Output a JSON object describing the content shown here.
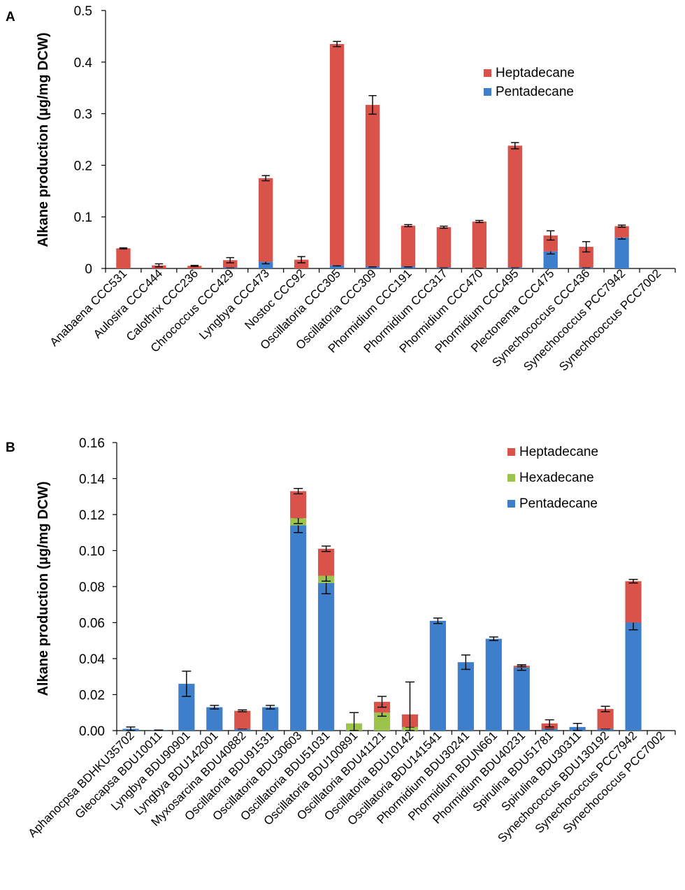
{
  "chart_data": [
    {
      "panel": "A",
      "type": "bar",
      "stacked": true,
      "title": "",
      "xlabel": "",
      "ylabel": "Alkane production (µg/mg DCW)",
      "ylim": [
        0,
        0.5
      ],
      "yticks": [
        0,
        0.1,
        0.2,
        0.3,
        0.4,
        0.5
      ],
      "ytick_labels": [
        "0",
        "0.1",
        "0.2",
        "0.3",
        "0.4",
        "0.5"
      ],
      "legend_position": "top-right",
      "legend_order": [
        "Heptadecane",
        "Pentadecane"
      ],
      "categories": [
        "Anabaena CCC531",
        "Aulosira CCC444",
        "Calothrix CCC236",
        "Chrococcus CCC429",
        "Lyngbya CCC473",
        "Nostoc CCC92",
        "Oscillatoria CCC305",
        "Oscillatoria CCC309",
        "Phormidium CCC191",
        "Phormidium CCC317",
        "Phormidium CCC470",
        "Phormidium CCC495",
        "Plectonema CCC475",
        "Synechococcus CCC436",
        "Synechococcus PCC7942",
        "Synechococcus PCC7002"
      ],
      "series": [
        {
          "name": "Pentadecane",
          "color": "#3d7fcb",
          "values": [
            0,
            0,
            0,
            0.002,
            0.013,
            0,
            0.006,
            0.004,
            0.004,
            0.002,
            0.001,
            0.002,
            0.033,
            0.002,
            0.06,
            0
          ],
          "errors": [
            0,
            0,
            0,
            0,
            0.004,
            0,
            0.001,
            0.001,
            0.001,
            0,
            0,
            0,
            0.005,
            0,
            0.003,
            0
          ]
        },
        {
          "name": "Heptadecane",
          "color": "#d9534a",
          "values": [
            0.039,
            0.006,
            0.005,
            0.014,
            0.162,
            0.017,
            0.429,
            0.313,
            0.079,
            0.078,
            0.09,
            0.236,
            0.031,
            0.04,
            0.022,
            0
          ],
          "errors": [
            0.001,
            0.003,
            0.001,
            0.005,
            0.005,
            0.006,
            0.005,
            0.018,
            0.002,
            0.002,
            0.002,
            0.006,
            0.009,
            0.01,
            0.002,
            0
          ]
        }
      ]
    },
    {
      "panel": "B",
      "type": "bar",
      "stacked": true,
      "title": "",
      "xlabel": "",
      "ylabel": "Alkane production (µg/mg DCW)",
      "ylim": [
        0,
        0.16
      ],
      "yticks": [
        0,
        0.02,
        0.04,
        0.06,
        0.08,
        0.1,
        0.12,
        0.14,
        0.16
      ],
      "ytick_labels": [
        "0.00",
        "0.02",
        "0.04",
        "0.06",
        "0.08",
        "0.10",
        "0.12",
        "0.14",
        "0.16"
      ],
      "legend_position": "top-right",
      "legend_order": [
        "Heptadecane",
        "Hexadecane",
        "Pentadecane"
      ],
      "categories": [
        "Aphanocpsa BDHKU35702",
        "Gleocapsa BDU10011",
        "Lyngbya BDU90901",
        "Lyngbya BDU142001",
        "Myxosarcina BDU40882",
        "Oscillatoria BDU91531",
        "Oscillatoria BDU30603",
        "Oscillatoria BDU51031",
        "Oscillatoria BDU100891",
        "Oscillatoria BDU41121",
        "Oscillatoria BDU10142",
        "Oscillatoria BDU141541",
        "Phormidium BDU30241",
        "Phormidium BDUN661",
        "Phormidium BDU40231",
        "Spirulina BDU51781",
        "Spirulina BDU30311",
        "Synechococcus BDU130192",
        "Synechococcus PCC7942",
        "Synechococcus PCC7002"
      ],
      "series": [
        {
          "name": "Pentadecane",
          "color": "#3d7fcb",
          "values": [
            0.001,
            0.0003,
            0.026,
            0.013,
            0.001,
            0.013,
            0.114,
            0.082,
            0,
            0,
            0,
            0.061,
            0.038,
            0.051,
            0.035,
            0.001,
            0.002,
            0.001,
            0.06,
            0
          ],
          "errors": [
            0.001,
            0,
            0.007,
            0.001,
            0,
            0.001,
            0.004,
            0.006,
            0,
            0,
            0,
            0.0015,
            0.004,
            0.001,
            0.0015,
            0,
            0.002,
            0,
            0.004,
            0
          ]
        },
        {
          "name": "Hexadecane",
          "color": "#9cc44a",
          "values": [
            0,
            0,
            0,
            0,
            0,
            0,
            0.004,
            0.004,
            0.004,
            0.01,
            0.002,
            0,
            0,
            0,
            0,
            0,
            0,
            0,
            0,
            0
          ],
          "errors": [
            0,
            0,
            0,
            0,
            0,
            0,
            0.003,
            0.003,
            0.006,
            0.002,
            0,
            0,
            0,
            0,
            0,
            0,
            0,
            0,
            0,
            0
          ]
        },
        {
          "name": "Heptadecane",
          "color": "#d9534a",
          "values": [
            0,
            0,
            0,
            0,
            0.01,
            0,
            0.015,
            0.015,
            0,
            0.006,
            0.007,
            0,
            0,
            0,
            0.001,
            0.003,
            0,
            0.011,
            0.023,
            0
          ],
          "errors": [
            0,
            0,
            0,
            0,
            0.0005,
            0,
            0.0015,
            0.0015,
            0,
            0.003,
            0.018,
            0,
            0,
            0,
            0.0005,
            0.002,
            0,
            0.0015,
            0.001,
            0
          ]
        }
      ]
    }
  ]
}
